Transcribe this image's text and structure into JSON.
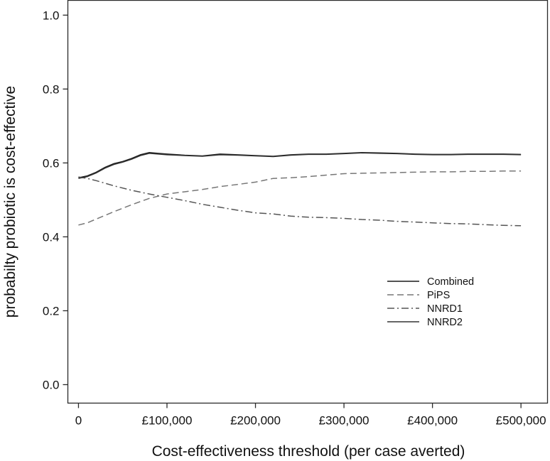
{
  "chart_data": {
    "type": "line",
    "title": "",
    "xlabel": "Cost-effectiveness threshold (per case averted)",
    "ylabel": "probabilty probiotic is cost-effective",
    "xlim": [
      -12000,
      530000
    ],
    "ylim": [
      -0.05,
      1.04
    ],
    "x_ticks": [
      0,
      100000,
      200000,
      300000,
      400000,
      500000
    ],
    "x_tick_labels": [
      "0",
      "£100,000",
      "£200,000",
      "£300,000",
      "£400,000",
      "£500,000"
    ],
    "y_ticks": [
      0.0,
      0.2,
      0.4,
      0.6,
      0.8,
      1.0
    ],
    "y_tick_labels": [
      "0.0",
      "0.2",
      "0.4",
      "0.6",
      "0.8",
      "1.0"
    ],
    "grid": false,
    "legend_position": "right, lower-middle",
    "series": [
      {
        "name": "Combined",
        "color": "#1a1a1a",
        "dash": "solid",
        "x": [
          0,
          10000,
          20000,
          30000,
          40000,
          50000,
          60000,
          70000,
          80000,
          90000,
          100000,
          120000,
          140000,
          160000,
          180000,
          200000,
          220000,
          240000,
          260000,
          280000,
          300000,
          320000,
          340000,
          360000,
          380000,
          400000,
          420000,
          440000,
          460000,
          480000,
          500000
        ],
        "y": [
          0.56,
          0.565,
          0.575,
          0.588,
          0.598,
          0.604,
          0.612,
          0.622,
          0.628,
          0.626,
          0.624,
          0.621,
          0.619,
          0.624,
          0.622,
          0.62,
          0.618,
          0.622,
          0.624,
          0.624,
          0.626,
          0.628,
          0.627,
          0.626,
          0.624,
          0.623,
          0.623,
          0.624,
          0.624,
          0.624,
          0.623
        ]
      },
      {
        "name": "PiPS",
        "color": "#777777",
        "dash": "dashed",
        "x": [
          0,
          10000,
          20000,
          40000,
          60000,
          80000,
          100000,
          120000,
          140000,
          160000,
          180000,
          200000,
          220000,
          240000,
          260000,
          280000,
          300000,
          320000,
          340000,
          360000,
          380000,
          400000,
          420000,
          440000,
          460000,
          480000,
          500000
        ],
        "y": [
          0.432,
          0.438,
          0.448,
          0.468,
          0.487,
          0.504,
          0.516,
          0.522,
          0.528,
          0.536,
          0.542,
          0.548,
          0.558,
          0.56,
          0.563,
          0.567,
          0.571,
          0.572,
          0.573,
          0.574,
          0.575,
          0.576,
          0.576,
          0.577,
          0.577,
          0.578,
          0.578
        ]
      },
      {
        "name": "NNRD1",
        "color": "#555555",
        "dash": "dash-dot",
        "x": [
          0,
          10000,
          20000,
          40000,
          60000,
          80000,
          100000,
          120000,
          140000,
          160000,
          180000,
          200000,
          220000,
          240000,
          260000,
          280000,
          300000,
          320000,
          340000,
          360000,
          380000,
          400000,
          420000,
          440000,
          460000,
          480000,
          500000
        ],
        "y": [
          0.562,
          0.558,
          0.552,
          0.538,
          0.526,
          0.516,
          0.507,
          0.498,
          0.488,
          0.48,
          0.472,
          0.465,
          0.462,
          0.456,
          0.453,
          0.452,
          0.45,
          0.447,
          0.445,
          0.442,
          0.44,
          0.438,
          0.436,
          0.435,
          0.433,
          0.431,
          0.43
        ]
      },
      {
        "name": "NNRD2",
        "color": "#333333",
        "dash": "solid",
        "x": [
          0,
          10000,
          20000,
          30000,
          40000,
          50000,
          60000,
          70000,
          80000,
          90000,
          100000,
          120000,
          140000,
          160000,
          180000,
          200000,
          220000,
          240000,
          260000,
          280000,
          300000,
          320000,
          340000,
          360000,
          380000,
          400000,
          420000,
          440000,
          460000,
          480000,
          500000
        ],
        "y": [
          0.558,
          0.563,
          0.573,
          0.586,
          0.596,
          0.602,
          0.61,
          0.62,
          0.626,
          0.624,
          0.622,
          0.62,
          0.618,
          0.622,
          0.621,
          0.619,
          0.617,
          0.621,
          0.623,
          0.623,
          0.625,
          0.627,
          0.626,
          0.625,
          0.623,
          0.622,
          0.622,
          0.623,
          0.623,
          0.623,
          0.622
        ]
      }
    ]
  }
}
